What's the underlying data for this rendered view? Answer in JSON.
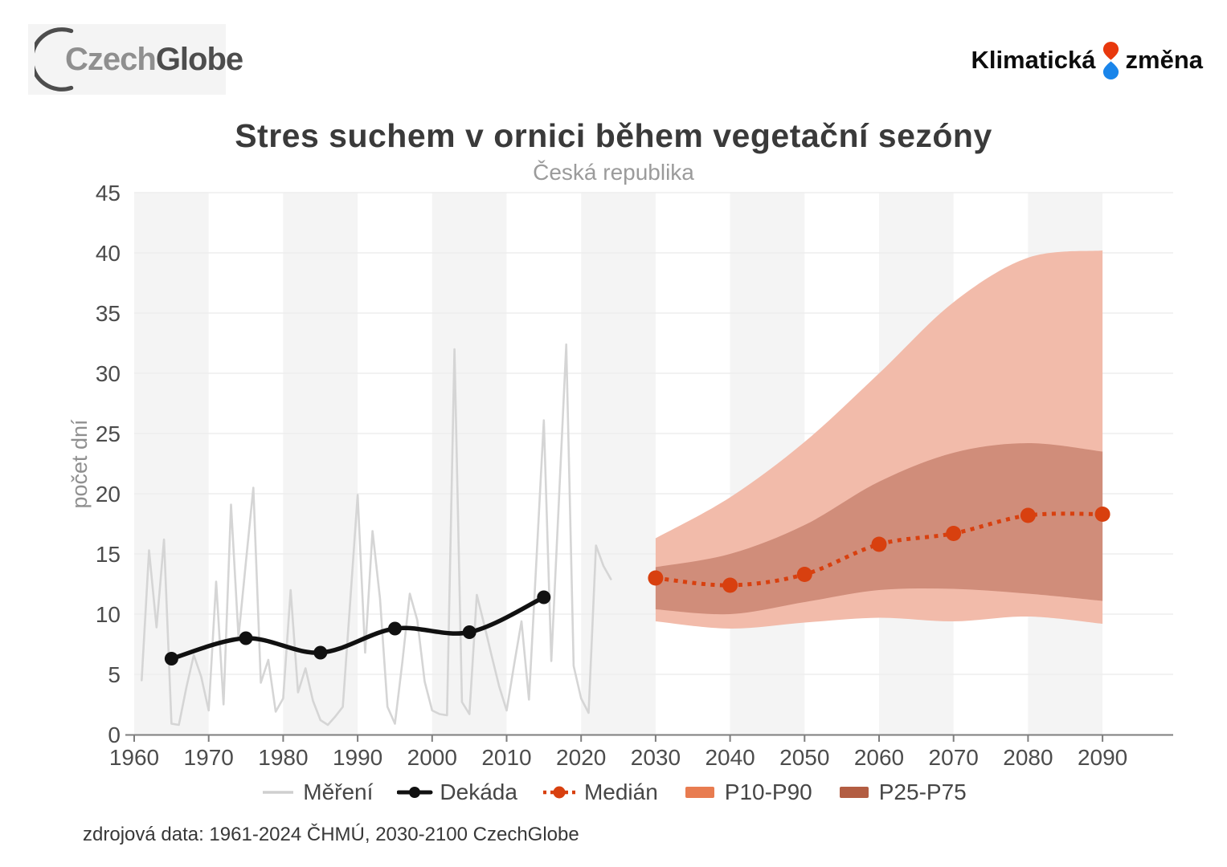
{
  "header": {
    "logo_left": {
      "text_light": "Czech",
      "text_dark": "Globe"
    },
    "logo_right": {
      "word1": "Klimatická",
      "word2": "změna"
    }
  },
  "title": "Stres suchem v ornici během vegetační sezóny",
  "subtitle": "Česká republika",
  "source": "zdrojová data: 1961-2024 ČHMÚ, 2030-2100 CzechGlobe",
  "colors": {
    "accent_red": "#d8400f",
    "band_light": "#f2bbaa",
    "band_dark": "#d08d7a",
    "measure_gray": "#d5d5d5",
    "decade_black": "#111111",
    "stripe": "#f4f4f4",
    "grid": "#ededed",
    "axis": "#7e7e7e",
    "tick_text": "#4c4c4c",
    "ylabel_text": "#8f8f8f",
    "legend_gray_swatch": "#cfcfcf",
    "legend_p10p90_swatch": "#e87c50",
    "legend_p25p75_swatch": "#b35d42",
    "logo_red": "#e8380d",
    "logo_blue": "#1a85ea"
  },
  "chart_data": {
    "type": "line",
    "title": "Stres suchem v ornici během vegetační sezóny",
    "subtitle": "Česká republika",
    "xlabel": "",
    "ylabel": "počet dní",
    "ylim": [
      0,
      45
    ],
    "xlim": [
      1960,
      2100
    ],
    "grid": true,
    "legend_position": "bottom",
    "yticks": [
      0,
      5,
      10,
      15,
      20,
      25,
      30,
      35,
      40,
      45
    ],
    "xticks": [
      1960,
      1970,
      1980,
      1990,
      2000,
      2010,
      2020,
      2030,
      2040,
      2050,
      2060,
      2070,
      2080,
      2090
    ],
    "stripe_gray_decades": [
      1960,
      1980,
      2000,
      2020,
      2040,
      2060,
      2080
    ],
    "series": [
      {
        "name": "Měření",
        "type": "line",
        "color": "#d5d5d5",
        "x": [
          1961,
          1962,
          1963,
          1964,
          1965,
          1966,
          1967,
          1968,
          1969,
          1970,
          1971,
          1972,
          1973,
          1974,
          1975,
          1976,
          1977,
          1978,
          1979,
          1980,
          1981,
          1982,
          1983,
          1984,
          1985,
          1986,
          1987,
          1988,
          1989,
          1990,
          1991,
          1992,
          1993,
          1994,
          1995,
          1996,
          1997,
          1998,
          1999,
          2000,
          2001,
          2002,
          2003,
          2004,
          2005,
          2006,
          2007,
          2008,
          2009,
          2010,
          2011,
          2012,
          2013,
          2014,
          2015,
          2016,
          2017,
          2018,
          2019,
          2020,
          2021,
          2022,
          2023,
          2024
        ],
        "values": [
          4.5,
          15.3,
          8.9,
          16.2,
          0.9,
          0.8,
          3.9,
          6.6,
          4.8,
          2.0,
          12.7,
          2.5,
          19.1,
          8.1,
          14.3,
          20.5,
          4.3,
          6.2,
          1.9,
          3.0,
          12.0,
          3.5,
          5.5,
          2.8,
          1.2,
          0.8,
          1.5,
          2.3,
          11.0,
          19.9,
          6.8,
          16.9,
          11.3,
          2.3,
          0.9,
          6.0,
          11.7,
          9.5,
          4.4,
          2.0,
          1.7,
          1.6,
          32.0,
          2.7,
          1.7,
          11.6,
          9.1,
          6.5,
          4.0,
          2.0,
          5.8,
          9.4,
          2.9,
          14.5,
          26.1,
          6.1,
          19.2,
          32.4,
          5.7,
          3.0,
          1.8,
          15.7,
          14.0,
          12.9
        ]
      },
      {
        "name": "Dekáda",
        "type": "smooth-line-markers",
        "color": "#111111",
        "x": [
          1965,
          1975,
          1985,
          1995,
          2005,
          2015
        ],
        "values": [
          6.3,
          8.0,
          6.8,
          8.8,
          8.5,
          11.4
        ]
      },
      {
        "name": "Medián",
        "type": "dotted-smooth-markers",
        "color": "#d8400f",
        "x": [
          2030,
          2040,
          2050,
          2060,
          2070,
          2080,
          2090
        ],
        "values": [
          13.0,
          12.4,
          13.3,
          15.8,
          16.7,
          18.2,
          18.3
        ]
      },
      {
        "name": "P10-P90",
        "type": "band",
        "color": "#f2bbaa",
        "x": [
          2030,
          2040,
          2050,
          2060,
          2070,
          2080,
          2090
        ],
        "upper": [
          16.3,
          19.7,
          24.3,
          30.0,
          35.9,
          39.6,
          40.2
        ],
        "lower": [
          9.4,
          8.8,
          9.3,
          9.7,
          9.4,
          9.8,
          9.2
        ]
      },
      {
        "name": "P25-P75",
        "type": "band",
        "color": "#d08d7a",
        "x": [
          2030,
          2040,
          2050,
          2060,
          2070,
          2080,
          2090
        ],
        "upper": [
          13.9,
          15.0,
          17.4,
          21.0,
          23.4,
          24.2,
          23.5
        ],
        "lower": [
          10.4,
          10.0,
          11.0,
          12.0,
          12.1,
          11.7,
          11.1
        ]
      }
    ],
    "legend": [
      {
        "label": "Měření",
        "marker": "line",
        "color": "#cfcfcf"
      },
      {
        "label": "Dekáda",
        "marker": "line-dot",
        "color": "#111111"
      },
      {
        "label": "Medián",
        "marker": "dotted-dot",
        "color": "#d8400f"
      },
      {
        "label": "P10-P90",
        "marker": "rect",
        "color": "#e87c50"
      },
      {
        "label": "P25-P75",
        "marker": "rect",
        "color": "#b35d42"
      }
    ]
  }
}
